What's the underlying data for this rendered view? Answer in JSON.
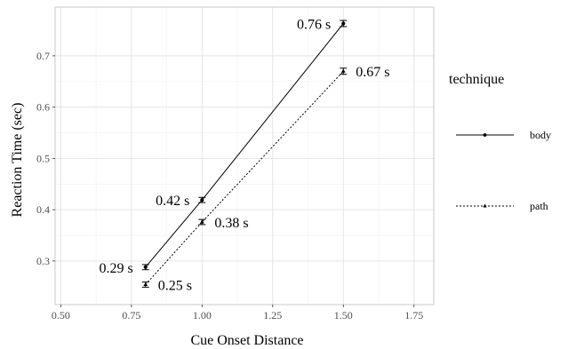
{
  "chart_data": {
    "type": "line",
    "xlabel": "Cue Onset Distance",
    "ylabel": "Reaction Time (sec)",
    "xlim": [
      0.48,
      1.82
    ],
    "ylim": [
      0.215,
      0.795
    ],
    "x_ticks": [
      0.5,
      0.75,
      1.0,
      1.25,
      1.5,
      1.75
    ],
    "x_tick_labels": [
      "0.50",
      "0.75",
      "1.00",
      "1.25",
      "1.50",
      "1.75"
    ],
    "y_ticks": [
      0.3,
      0.4,
      0.5,
      0.6,
      0.7
    ],
    "y_tick_labels": [
      "0.3",
      "0.4",
      "0.5",
      "0.6",
      "0.7"
    ],
    "grid": true,
    "legend": {
      "title": "technique",
      "position": "right"
    },
    "series": [
      {
        "name": "body",
        "line_style": "solid",
        "marker": "circle",
        "x": [
          0.8,
          1.0,
          1.5
        ],
        "y": [
          0.288,
          0.419,
          0.763
        ],
        "error": [
          0.005,
          0.005,
          0.006
        ],
        "labels": [
          "0.29 s",
          "0.42 s",
          "0.76 s"
        ]
      },
      {
        "name": "path",
        "line_style": "dotted",
        "marker": "triangle",
        "x": [
          0.8,
          1.0,
          1.5
        ],
        "y": [
          0.254,
          0.376,
          0.67
        ],
        "error": [
          0.005,
          0.005,
          0.006
        ],
        "labels": [
          "0.25 s",
          "0.38 s",
          "0.67 s"
        ]
      }
    ]
  }
}
